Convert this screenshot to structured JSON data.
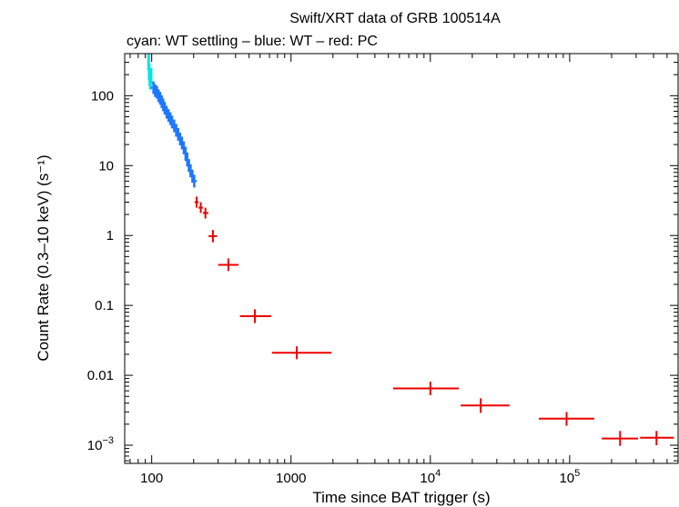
{
  "chart_data": {
    "type": "scatter",
    "title": "Swift/XRT data of GRB 100514A",
    "subtitle": "cyan: WT settling – blue: WT – red: PC",
    "xlabel": "Time since BAT trigger (s)",
    "ylabel": "Count Rate (0.3–10 keV) (s⁻¹)",
    "x_scale": "log",
    "y_scale": "log",
    "xlim": [
      64,
      600000
    ],
    "ylim": [
      0.00055,
      400
    ],
    "x_ticks": [
      {
        "value": 100,
        "label": "100",
        "base": "",
        "exp": ""
      },
      {
        "value": 1000,
        "label": "1000",
        "base": "",
        "exp": ""
      },
      {
        "value": 10000,
        "label": "",
        "base": "10",
        "exp": "4"
      },
      {
        "value": 100000,
        "label": "",
        "base": "10",
        "exp": "5"
      }
    ],
    "y_ticks": [
      {
        "value": 100,
        "label": "100",
        "base": "",
        "exp": ""
      },
      {
        "value": 10,
        "label": "10",
        "base": "",
        "exp": ""
      },
      {
        "value": 1,
        "label": "1",
        "base": "",
        "exp": ""
      },
      {
        "value": 0.1,
        "label": "0.1",
        "base": "",
        "exp": ""
      },
      {
        "value": 0.01,
        "label": "0.01",
        "base": "",
        "exp": ""
      },
      {
        "value": 0.001,
        "label": "",
        "base": "10",
        "exp": "−3"
      }
    ],
    "series": [
      {
        "color": "#00e5e5",
        "points": [
          [
            95,
            300
          ],
          [
            96,
            220
          ],
          [
            97,
            180
          ],
          [
            98,
            160
          ],
          [
            99,
            190
          ]
        ]
      },
      {
        "color": "#1e78ff",
        "points": [
          [
            103,
            130
          ],
          [
            106,
            118
          ],
          [
            109,
            112
          ],
          [
            112,
            100
          ],
          [
            115,
            92
          ],
          [
            118,
            82
          ],
          [
            121,
            74
          ],
          [
            124,
            66
          ],
          [
            128,
            58
          ],
          [
            132,
            52
          ],
          [
            136,
            47
          ],
          [
            140,
            42
          ],
          [
            145,
            37
          ],
          [
            150,
            32
          ],
          [
            155,
            28
          ],
          [
            160,
            24
          ],
          [
            165,
            21
          ],
          [
            170,
            18
          ],
          [
            175,
            15
          ],
          [
            180,
            12
          ],
          [
            185,
            10
          ],
          [
            190,
            8.5
          ],
          [
            196,
            7.0
          ],
          [
            202,
            6.0
          ]
        ]
      },
      {
        "color": "#ee0000",
        "points": [
          {
            "x": 210,
            "y": 3.0,
            "xlo": 203,
            "xhi": 217,
            "ylo": 2.5,
            "yhi": 3.6
          },
          {
            "x": 225,
            "y": 2.5,
            "xlo": 217,
            "xhi": 233,
            "ylo": 2.1,
            "yhi": 3.0
          },
          {
            "x": 243,
            "y": 2.1,
            "xlo": 233,
            "xhi": 255,
            "ylo": 1.75,
            "yhi": 2.5
          },
          {
            "x": 275,
            "y": 0.98,
            "xlo": 256,
            "xhi": 295,
            "ylo": 0.8,
            "yhi": 1.2
          },
          {
            "x": 355,
            "y": 0.38,
            "xlo": 300,
            "xhi": 420,
            "ylo": 0.31,
            "yhi": 0.47
          },
          {
            "x": 550,
            "y": 0.07,
            "xlo": 430,
            "xhi": 720,
            "ylo": 0.056,
            "yhi": 0.088
          },
          {
            "x": 1100,
            "y": 0.021,
            "xlo": 730,
            "xhi": 1950,
            "ylo": 0.017,
            "yhi": 0.026
          },
          {
            "x": 10000,
            "y": 0.0065,
            "xlo": 5400,
            "xhi": 16000,
            "ylo": 0.0052,
            "yhi": 0.0081
          },
          {
            "x": 23000,
            "y": 0.0037,
            "xlo": 16500,
            "xhi": 37000,
            "ylo": 0.0029,
            "yhi": 0.0047
          },
          {
            "x": 95000,
            "y": 0.0024,
            "xlo": 60000,
            "xhi": 150000,
            "ylo": 0.0019,
            "yhi": 0.003
          },
          {
            "x": 230000,
            "y": 0.00125,
            "xlo": 170000,
            "xhi": 310000,
            "ylo": 0.00098,
            "yhi": 0.0016
          },
          {
            "x": 420000,
            "y": 0.00128,
            "xlo": 320000,
            "xhi": 560000,
            "ylo": 0.001,
            "yhi": 0.0016
          }
        ]
      }
    ]
  }
}
